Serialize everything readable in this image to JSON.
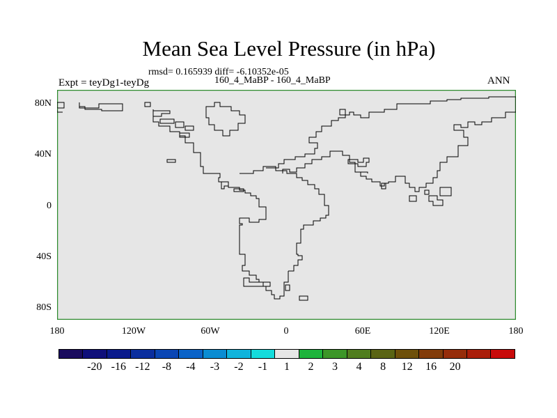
{
  "plot": {
    "title": "Mean Sea Level Pressure (in hPa)",
    "stats": "rmsd= 0.165939 diff= -6.10352e-05",
    "case_label": "160_4_MaBP - 160_4_MaBP",
    "expt_label": "Expt = teyDg1-teyDg",
    "season": "ANN"
  },
  "axes": {
    "x_ticks": [
      "180",
      "120W",
      "60W",
      "0",
      "60E",
      "120E",
      "180"
    ],
    "y_ticks": [
      "80N",
      "40N",
      "0",
      "40S",
      "80S"
    ]
  },
  "colorbar": {
    "colors": [
      "#1a0b5e",
      "#0f0f7a",
      "#0a1a8c",
      "#0a2e9e",
      "#0a46b4",
      "#0a63c8",
      "#0a8cd2",
      "#10b4dc",
      "#14dcdc",
      "#e6e6e6",
      "#1eb43c",
      "#3c9628",
      "#507d1e",
      "#5a6414",
      "#6e500a",
      "#823c0a",
      "#962d0a",
      "#aa1e0a",
      "#c80a0a"
    ],
    "labels": [
      "-20",
      "-16",
      "-12",
      "-8",
      "-4",
      "-3",
      "-2",
      "-1",
      "1",
      "2",
      "3",
      "4",
      "8",
      "12",
      "16",
      "20"
    ]
  },
  "map_style": {
    "fill": "#e6e6e6",
    "frame": "#2e8b2e",
    "coast": "#000000"
  }
}
